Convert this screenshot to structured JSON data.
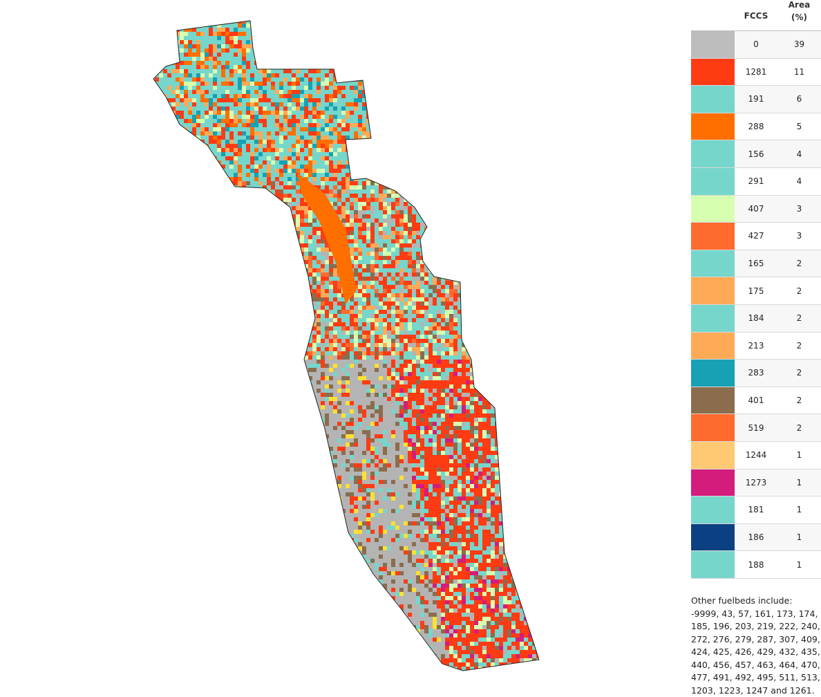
{
  "legend": {
    "header_fccs": "FCCS",
    "header_area_line1": "Area",
    "header_area_line2": "(%)",
    "rows": [
      {
        "code": "0",
        "area": "39",
        "color": "#bdbdbd"
      },
      {
        "code": "1281",
        "area": "11",
        "color": "#ff3b14"
      },
      {
        "code": "191",
        "area": "6",
        "color": "#76d6cb"
      },
      {
        "code": "288",
        "area": "5",
        "color": "#ff6f00"
      },
      {
        "code": "156",
        "area": "4",
        "color": "#76d6cb"
      },
      {
        "code": "291",
        "area": "4",
        "color": "#76d6cb"
      },
      {
        "code": "407",
        "area": "3",
        "color": "#d6ffb0"
      },
      {
        "code": "427",
        "area": "3",
        "color": "#ff6a2e"
      },
      {
        "code": "165",
        "area": "2",
        "color": "#76d6cb"
      },
      {
        "code": "175",
        "area": "2",
        "color": "#ffaa57"
      },
      {
        "code": "184",
        "area": "2",
        "color": "#76d6cb"
      },
      {
        "code": "213",
        "area": "2",
        "color": "#ffaa57"
      },
      {
        "code": "283",
        "area": "2",
        "color": "#18a0b4"
      },
      {
        "code": "401",
        "area": "2",
        "color": "#8b6d4d"
      },
      {
        "code": "519",
        "area": "2",
        "color": "#ff6a2e"
      },
      {
        "code": "1244",
        "area": "1",
        "color": "#ffc873"
      },
      {
        "code": "1273",
        "area": "1",
        "color": "#d41c7c"
      },
      {
        "code": "181",
        "area": "1",
        "color": "#76d6cb"
      },
      {
        "code": "186",
        "area": "1",
        "color": "#0b4182"
      },
      {
        "code": "188",
        "area": "1",
        "color": "#76d6cb"
      }
    ],
    "other_text": "Other fuelbeds include: -9999, 43, 57, 161, 173, 174, 185, 196, 203, 219, 222, 240, 272, 276, 279, 287, 307, 409, 424, 425, 426, 429, 432, 435, 440, 456, 457, 463, 464, 470, 477, 491, 492, 495, 511, 513, 1203, 1223, 1247 and 1261."
  },
  "map": {
    "outline_color": "#222222",
    "water_color": "#b4b4b4",
    "fuel_colors": [
      "#76d6cb",
      "#ff3b14",
      "#ff6f00",
      "#ffaa57",
      "#d6ffb0",
      "#18a0b4",
      "#8b6d4d",
      "#ffc873",
      "#d41c7c",
      "#0b4182",
      "#ff6a2e",
      "#ffe033"
    ]
  }
}
